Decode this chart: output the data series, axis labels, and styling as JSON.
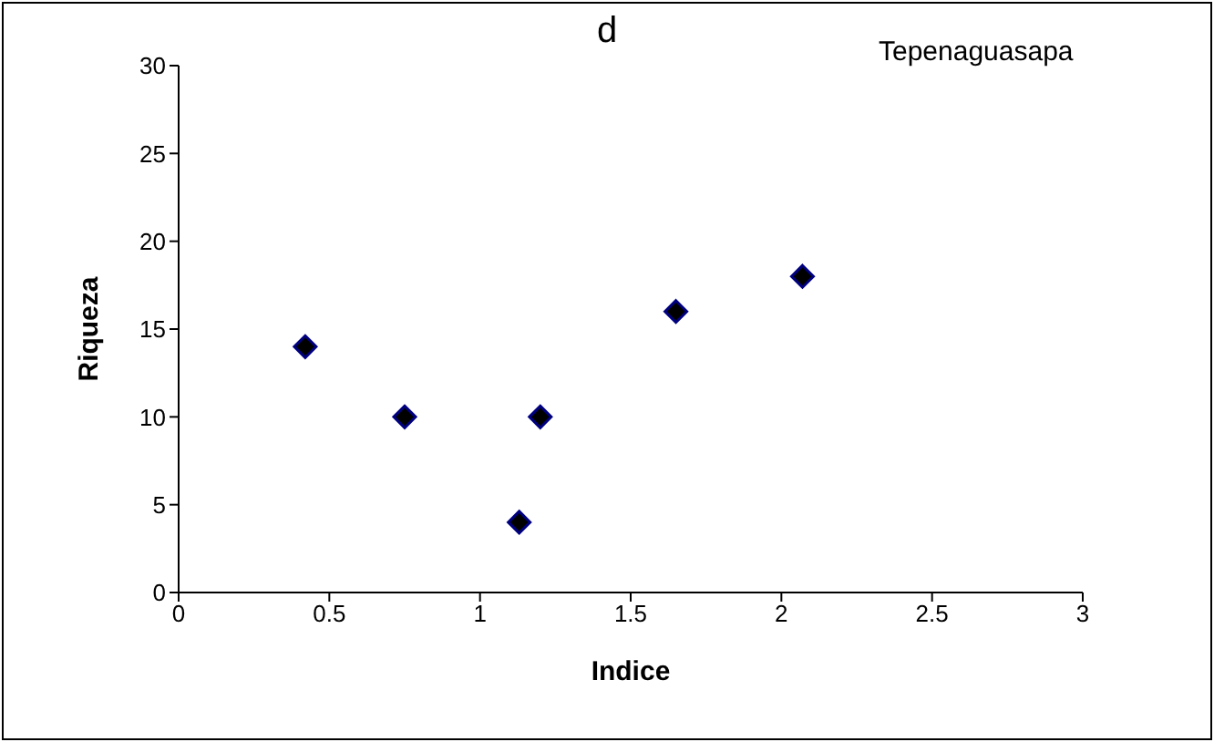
{
  "chart_data": {
    "type": "scatter",
    "title": "d",
    "xlabel": "Indice",
    "ylabel": "Riqueza",
    "annotations": [
      "Tepenaguasapa"
    ],
    "series": [
      {
        "color": "#000080",
        "x": [
          0.42,
          0.75,
          1.13,
          1.2,
          1.65,
          2.07
        ],
        "values": [
          14,
          10,
          4,
          10,
          16,
          18
        ]
      }
    ],
    "xlim": [
      0,
      3
    ],
    "xticks": [
      0,
      0.5,
      1,
      1.5,
      2,
      2.5,
      3
    ],
    "ylim": [
      0,
      30
    ],
    "yticks": [
      0,
      5,
      10,
      15,
      20,
      25,
      30
    ],
    "marker": "diamond",
    "grid": false
  }
}
